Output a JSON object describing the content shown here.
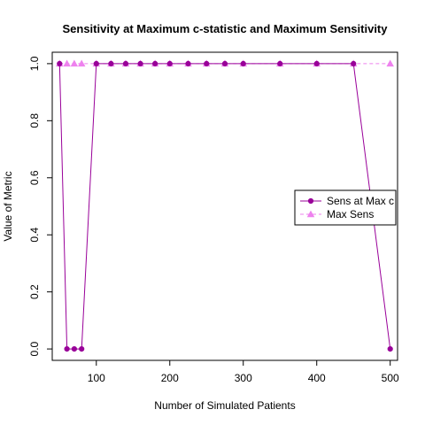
{
  "chart_data": {
    "type": "line",
    "title": "Sensitivity at Maximum c-statistic and Maximum Sensitivity",
    "xlabel": "Number of Simulated Patients",
    "ylabel": "Value of Metric",
    "xlim": [
      40,
      510
    ],
    "ylim": [
      -0.04,
      1.04
    ],
    "xticks": [
      100,
      200,
      300,
      400,
      500
    ],
    "yticks": [
      0.0,
      0.2,
      0.4,
      0.6,
      0.8,
      1.0
    ],
    "xtick_labels": [
      "100",
      "200",
      "300",
      "400",
      "500"
    ],
    "ytick_labels": [
      "0.0",
      "0.2",
      "0.4",
      "0.6",
      "0.8",
      "1.0"
    ],
    "grid": false,
    "legend_position": "right",
    "series": [
      {
        "name": "Sens at Max c",
        "color": "#990099",
        "line": "solid",
        "marker": "circle",
        "x": [
          50,
          60,
          70,
          80,
          100,
          120,
          140,
          160,
          180,
          200,
          225,
          250,
          275,
          300,
          350,
          400,
          450,
          500
        ],
        "y": [
          1.0,
          0.0,
          0.0,
          0.0,
          1.0,
          1.0,
          1.0,
          1.0,
          1.0,
          1.0,
          1.0,
          1.0,
          1.0,
          1.0,
          1.0,
          1.0,
          1.0,
          0.0
        ]
      },
      {
        "name": "Max Sens",
        "color": "#ee82ee",
        "line": "dashed",
        "marker": "triangle",
        "x": [
          50,
          60,
          70,
          80,
          100,
          120,
          140,
          160,
          180,
          200,
          225,
          250,
          275,
          300,
          350,
          400,
          450,
          500
        ],
        "y": [
          1.0,
          1.0,
          1.0,
          1.0,
          1.0,
          1.0,
          1.0,
          1.0,
          1.0,
          1.0,
          1.0,
          1.0,
          1.0,
          1.0,
          1.0,
          1.0,
          1.0,
          1.0
        ]
      }
    ]
  }
}
